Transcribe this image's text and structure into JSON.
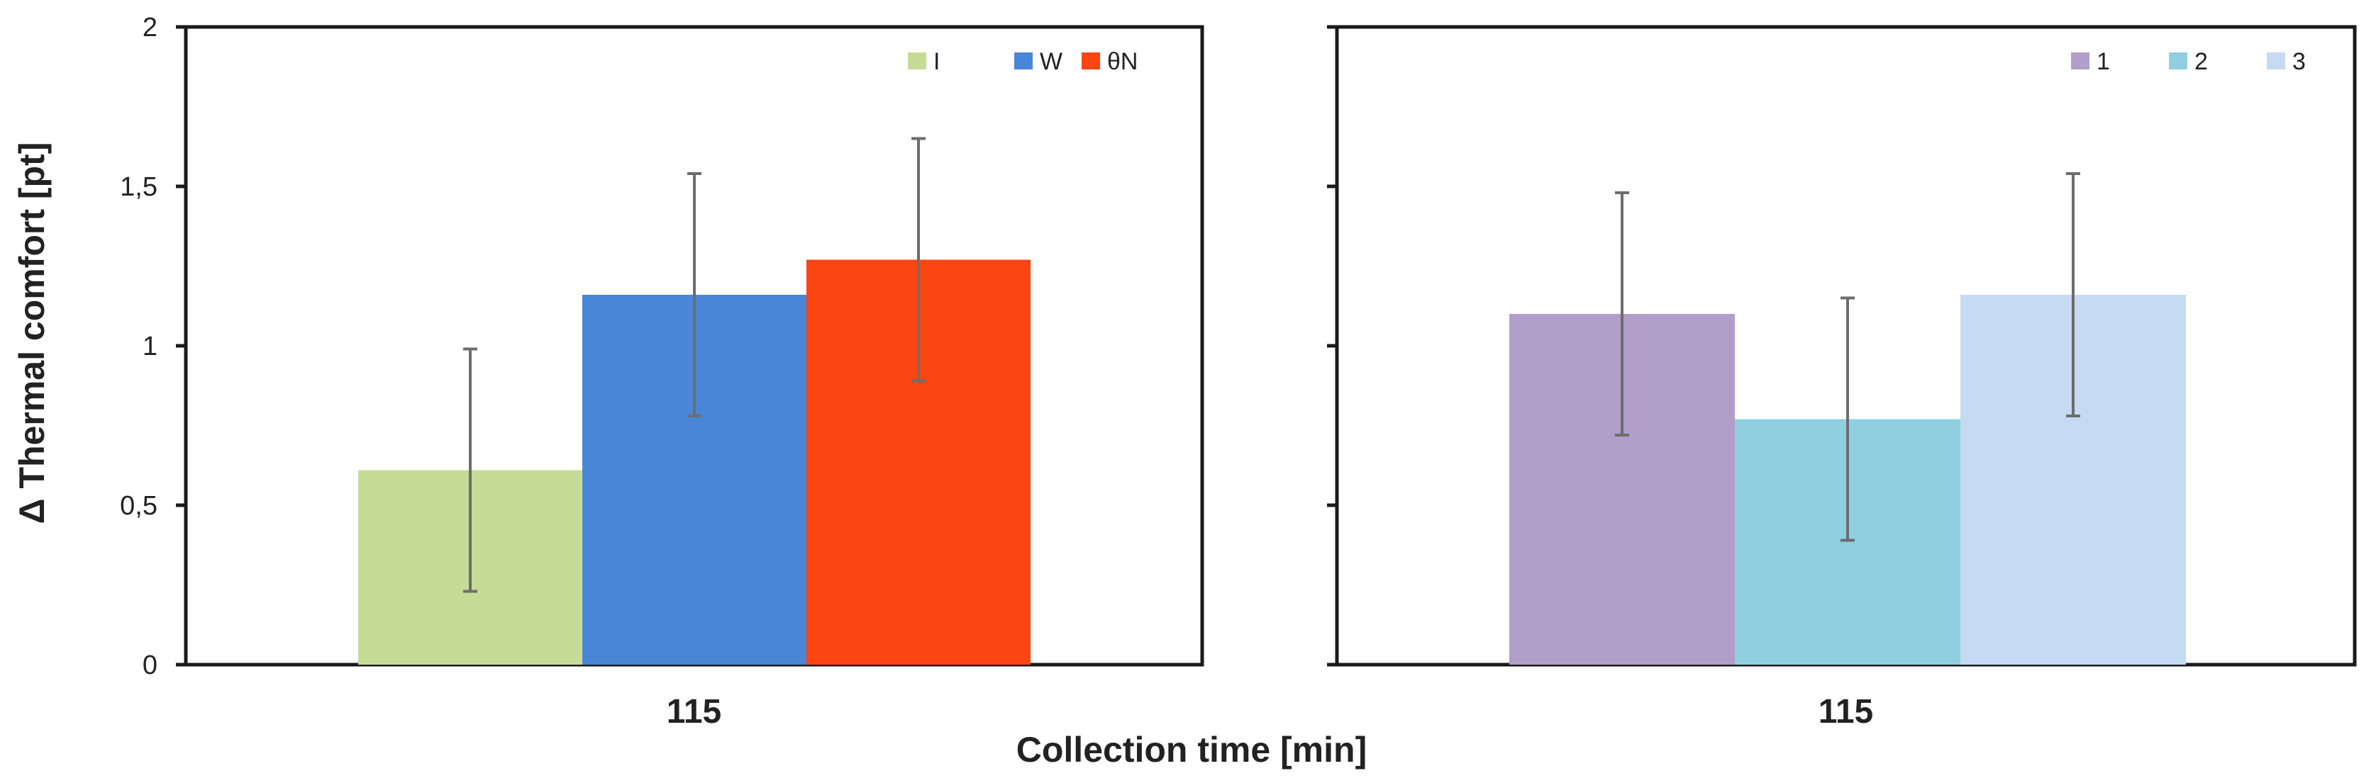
{
  "chart_data": [
    {
      "type": "bar",
      "categories": [
        "115"
      ],
      "ylabel": "Δ Thermal comfort [pt]",
      "ylim": [
        0,
        2
      ],
      "yticks": [
        "0",
        "0,5",
        "1",
        "1,5",
        "2"
      ],
      "legend_position": "top-right",
      "grid": false,
      "series": [
        {
          "name": "I",
          "values": [
            0.61
          ],
          "error": [
            0.38
          ],
          "color": "#c5dc96"
        },
        {
          "name": "W",
          "values": [
            1.16
          ],
          "error": [
            0.38
          ],
          "color": "#4a86d8"
        },
        {
          "name": "θN",
          "values": [
            1.27
          ],
          "error": [
            0.38
          ],
          "color": "#fb4513"
        }
      ]
    },
    {
      "type": "bar",
      "categories": [
        "115"
      ],
      "ylim": [
        0,
        2
      ],
      "legend_position": "top-right",
      "grid": false,
      "series": [
        {
          "name": "1",
          "values": [
            1.1
          ],
          "error": [
            0.38
          ],
          "color": "#b19ec9"
        },
        {
          "name": "2",
          "values": [
            0.77
          ],
          "error": [
            0.38
          ],
          "color": "#8fcfe0"
        },
        {
          "name": "3",
          "values": [
            1.16
          ],
          "error": [
            0.38
          ],
          "color": "#c6daf3"
        }
      ]
    }
  ],
  "shared": {
    "xlabel": "Collection time [min]"
  }
}
